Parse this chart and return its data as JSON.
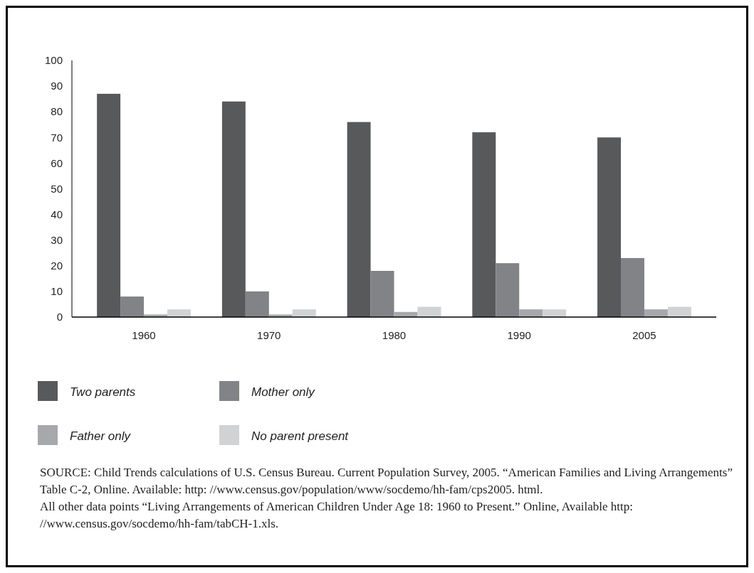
{
  "chart_data": {
    "type": "bar",
    "categories": [
      "1960",
      "1970",
      "1980",
      "1990",
      "2005"
    ],
    "series": [
      {
        "name": "Two parents",
        "color": "#58595b",
        "values": [
          87,
          84,
          76,
          72,
          70
        ]
      },
      {
        "name": "Mother only",
        "color": "#828387",
        "values": [
          8,
          10,
          18,
          21,
          23
        ]
      },
      {
        "name": "Father only",
        "color": "#a7a8ab",
        "values": [
          1,
          1,
          2,
          3,
          3
        ]
      },
      {
        "name": "No parent present",
        "color": "#d1d2d4",
        "values": [
          3,
          3,
          4,
          3,
          4
        ]
      }
    ],
    "ylim": [
      0,
      100
    ],
    "yticks": [
      0,
      10,
      20,
      30,
      40,
      50,
      60,
      70,
      80,
      90,
      100
    ],
    "grid": false,
    "legend": "bottom",
    "annotations": [
      "SOURCE: Child Trends calculations of U.S. Census Bureau. Current Population Survey, 2005. “American Families and Living Arrangements” Table C-2, Online. Available: http: //www.census.gov/population/www/socdemo/hh-fam/cps2005. html.",
      "All other data points “Living Arrangements of American Children Under Age 18: 1960 to Present.” Online, Available http: //www.census.gov/socdemo/hh-fam/tabCH-1.xls."
    ]
  }
}
